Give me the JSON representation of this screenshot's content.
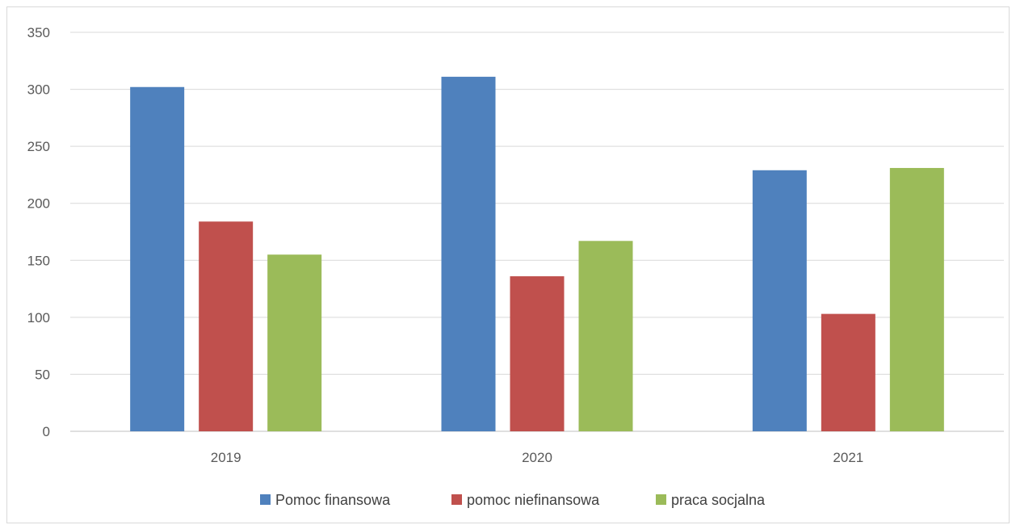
{
  "chart_data": {
    "type": "bar",
    "title": "",
    "xlabel": "",
    "ylabel": "",
    "categories": [
      "2019",
      "2020",
      "2021"
    ],
    "ylim": [
      0,
      350
    ],
    "yticks": [
      0,
      50,
      100,
      150,
      200,
      250,
      300,
      350
    ],
    "grid": true,
    "legend_position": "bottom",
    "series": [
      {
        "name": "Pomoc finansowa",
        "color": "#4f81bd",
        "values": [
          302,
          311,
          229
        ]
      },
      {
        "name": "pomoc niefinansowa",
        "color": "#c0504d",
        "values": [
          184,
          136,
          103
        ]
      },
      {
        "name": "praca socjalna",
        "color": "#9bbb59",
        "values": [
          155,
          167,
          231
        ]
      }
    ]
  }
}
